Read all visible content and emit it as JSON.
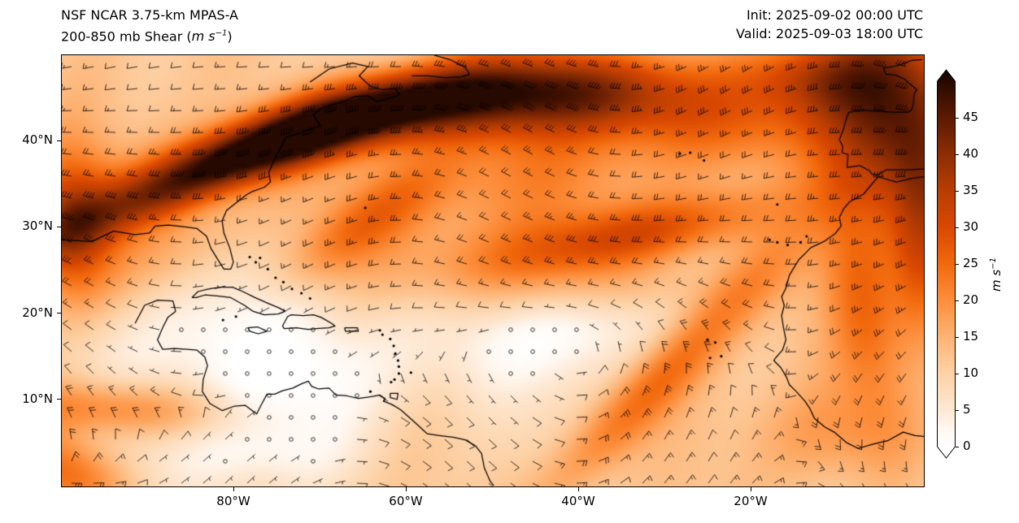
{
  "header": {
    "title_line1": "NSF NCAR 3.75-km MPAS-A",
    "title_line2_prefix": "200-850 mb Shear (",
    "title_units_italic": "m s",
    "title_units_sup": "−1",
    "title_line2_suffix": ")",
    "init_label": "Init: 2025-09-02 00:00 UTC",
    "valid_label": "Valid: 2025-09-03 18:00 UTC"
  },
  "map": {
    "lat_ticks": [
      {
        "label": "40°N",
        "lat": 40
      },
      {
        "label": "30°N",
        "lat": 30
      },
      {
        "label": "20°N",
        "lat": 20
      },
      {
        "label": "10°N",
        "lat": 10
      }
    ],
    "lon_ticks": [
      {
        "label": "80°W",
        "lon": 80
      },
      {
        "label": "60°W",
        "lon": 60
      },
      {
        "label": "40°W",
        "lon": 40
      },
      {
        "label": "20°W",
        "lon": 20
      }
    ]
  },
  "colorbar": {
    "ticks": [
      {
        "label": "0",
        "value": 0
      },
      {
        "label": "5",
        "value": 5
      },
      {
        "label": "10",
        "value": 10
      },
      {
        "label": "15",
        "value": 15
      },
      {
        "label": "20",
        "value": 20
      },
      {
        "label": "25",
        "value": 25
      },
      {
        "label": "30",
        "value": 30
      },
      {
        "label": "35",
        "value": 35
      },
      {
        "label": "40",
        "value": 40
      },
      {
        "label": "45",
        "value": 45
      }
    ],
    "unit_italic": "m s",
    "unit_sup": "−1",
    "min": 0,
    "max": 50,
    "stops": [
      [
        0,
        "#ffffff"
      ],
      [
        2.5,
        "#fff7f0"
      ],
      [
        5,
        "#fee8d3"
      ],
      [
        10,
        "#fdd2a7"
      ],
      [
        15,
        "#fdb374"
      ],
      [
        20,
        "#fd8e3c"
      ],
      [
        25,
        "#f2690d"
      ],
      [
        30,
        "#d94801"
      ],
      [
        35,
        "#b83d02"
      ],
      [
        40,
        "#8c2d04"
      ],
      [
        45,
        "#5d1a02"
      ],
      [
        50,
        "#260900"
      ]
    ],
    "over_color": "#120300",
    "under_color": "#ffffff"
  },
  "chart_data": {
    "type": "heatmap",
    "title": "NSF NCAR 3.75-km MPAS-A 200-850 mb Shear (m s−1)",
    "units": "m s−1",
    "value_range": [
      0,
      50
    ],
    "colorbar_ticks": [
      0,
      5,
      10,
      15,
      20,
      25,
      30,
      35,
      40,
      45
    ],
    "x_axis": {
      "tick_labels": [
        "80°W",
        "60°W",
        "40°W",
        "20°W"
      ],
      "range_lon_west": [
        100,
        0
      ]
    },
    "y_axis": {
      "tick_labels": [
        "10°N",
        "20°N",
        "30°N",
        "40°N"
      ],
      "range_lat_north": [
        0,
        50
      ]
    },
    "legend_position": "right-colorbar-with-extend-arrows",
    "overlays": [
      "wind-barbs",
      "coastlines",
      "calm-circles"
    ],
    "field": {
      "base": 11,
      "blobs": [
        [
          0.17,
          0.27,
          28,
          0.28,
          0.045,
          -22
        ],
        [
          0.32,
          0.16,
          32,
          0.25,
          0.05,
          -15
        ],
        [
          0.5,
          0.1,
          24,
          0.25,
          0.06,
          -5
        ],
        [
          0.645,
          0.1,
          14,
          0.18,
          0.07,
          3
        ],
        [
          0.01,
          0.4,
          22,
          0.12,
          0.07,
          90
        ],
        [
          0.965,
          0.14,
          30,
          0.18,
          0.12,
          75
        ],
        [
          0.875,
          0.05,
          14,
          0.12,
          0.06,
          0
        ],
        [
          1.0,
          0.47,
          16,
          0.16,
          0.05,
          90
        ],
        [
          0.7,
          0.4,
          15,
          0.22,
          0.05,
          -12
        ],
        [
          0.55,
          0.47,
          9,
          0.25,
          0.06,
          -8
        ],
        [
          0.69,
          0.76,
          15,
          0.3,
          0.05,
          -46
        ],
        [
          0.93,
          0.58,
          11,
          0.2,
          0.06,
          80
        ],
        [
          0.06,
          0.82,
          13,
          0.2,
          0.045,
          3
        ],
        [
          0.01,
          0.97,
          15,
          0.1,
          0.06,
          20
        ],
        [
          0.345,
          0.4,
          11,
          0.16,
          0.05,
          -35
        ],
        [
          0.55,
          0.27,
          8,
          0.45,
          0.12,
          -8
        ],
        [
          0.12,
          0.47,
          8,
          0.15,
          0.08,
          -30
        ],
        [
          0.63,
          0.55,
          7,
          0.2,
          0.05,
          -5
        ],
        [
          0.8,
          0.17,
          8,
          0.18,
          0.1,
          0
        ],
        [
          0.9,
          0.88,
          6,
          0.15,
          0.08,
          0
        ],
        [
          0.13,
          0.62,
          -9,
          0.22,
          0.14,
          0
        ],
        [
          0.46,
          0.66,
          -8,
          0.25,
          0.12,
          -5
        ],
        [
          0.29,
          0.78,
          -6,
          0.15,
          0.1,
          0
        ],
        [
          0.615,
          0.6,
          -7,
          0.12,
          0.08,
          -20
        ],
        [
          0.83,
          0.3,
          -6,
          0.14,
          0.08,
          -10
        ],
        [
          0.22,
          0.93,
          -7,
          0.2,
          0.08,
          0
        ]
      ]
    }
  }
}
